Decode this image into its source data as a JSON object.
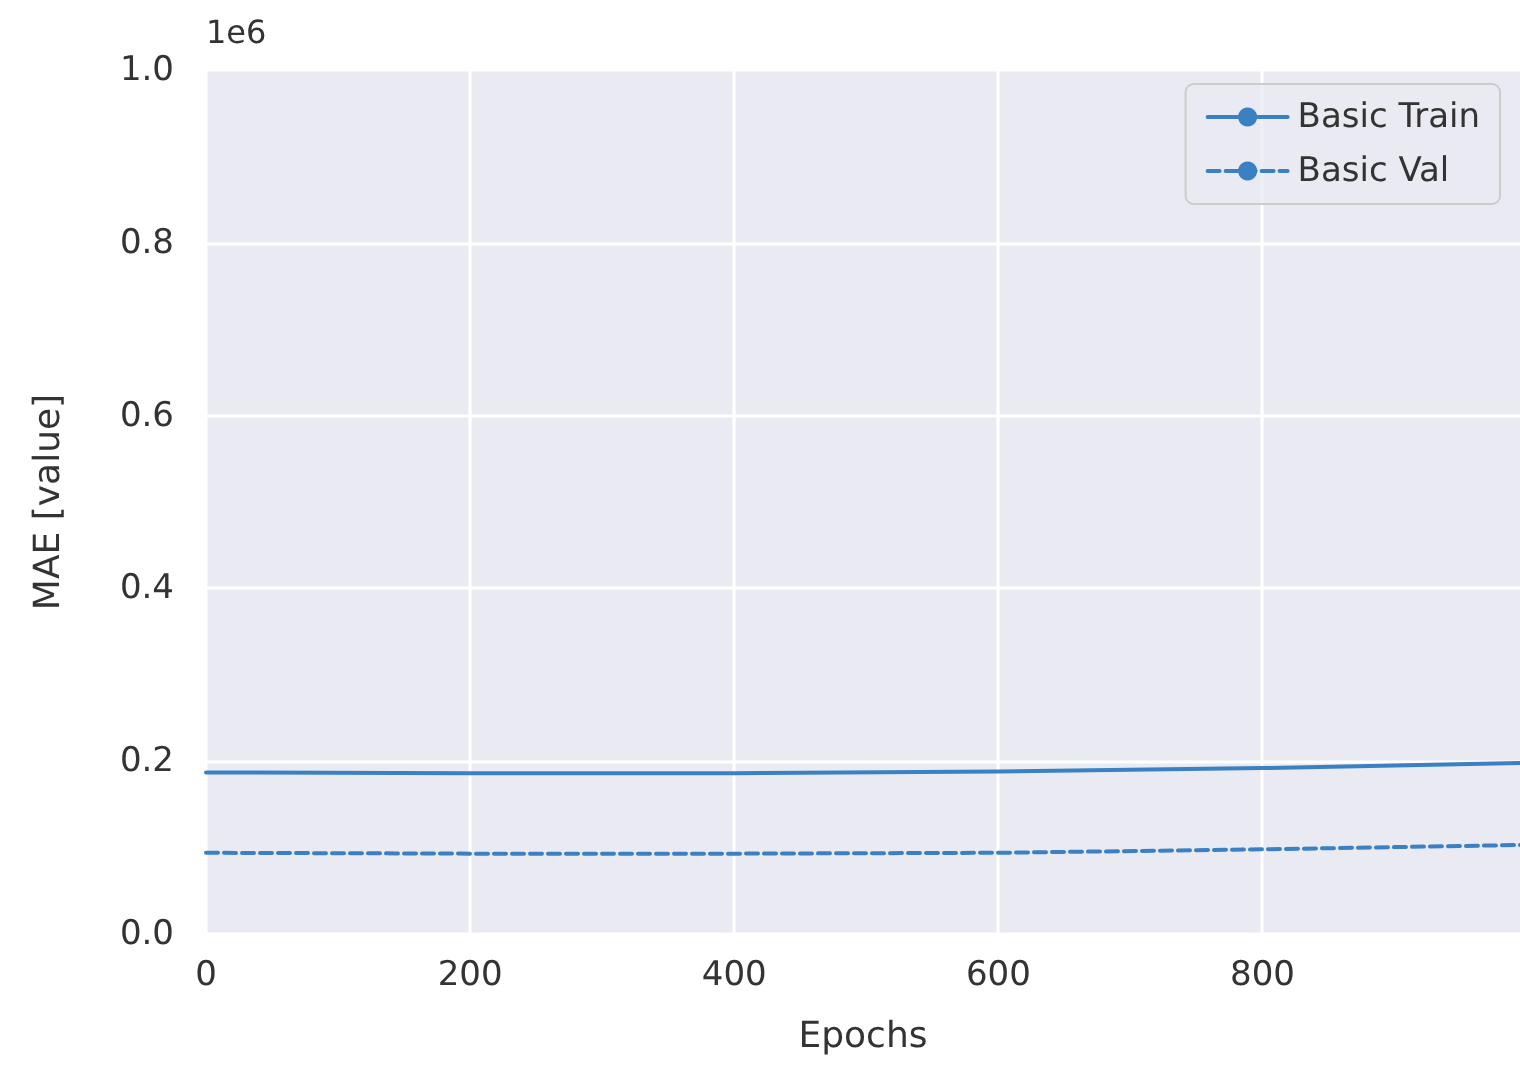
{
  "chart_data": {
    "type": "line",
    "xlabel": "Epochs",
    "ylabel": "MAE [value]",
    "annotations": [
      "1e6"
    ],
    "x": [
      0,
      200,
      400,
      600,
      800,
      995
    ],
    "series": [
      {
        "name": "Basic Train",
        "color": "#3a80c2",
        "line_style": "solid",
        "values": [
          0.187,
          0.186,
          0.186,
          0.188,
          0.192,
          0.198
        ]
      },
      {
        "name": "Basic Val",
        "color": "#3a80c2",
        "line_style": "dashed",
        "values": [
          0.094,
          0.093,
          0.093,
          0.094,
          0.098,
          0.103
        ]
      }
    ],
    "xlim": [
      0,
      995
    ],
    "xticks": [
      0,
      200,
      400,
      600,
      800
    ],
    "ylim": [
      0,
      1.0
    ],
    "yticks": [
      {
        "value": 0,
        "label": "0.0"
      },
      0.2,
      0.4,
      0.6,
      0.8,
      {
        "value": 1.0,
        "label": "1.0"
      }
    ],
    "grid": true,
    "legend": "top right",
    "marker": "none"
  }
}
